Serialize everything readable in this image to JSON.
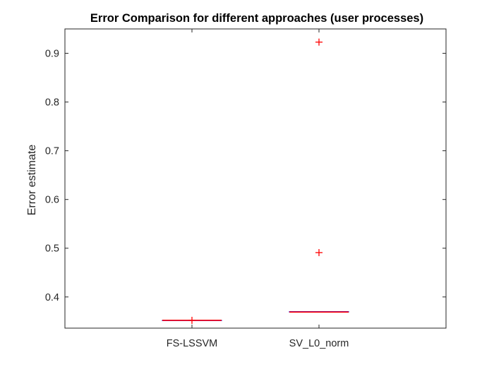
{
  "chart_data": {
    "type": "boxplot",
    "title": "Error Comparison for different approaches (user processes)",
    "xlabel": "",
    "ylabel": "Error estimate",
    "ylim": [
      0.336,
      0.95
    ],
    "yticks": [
      0.4,
      0.5,
      0.6,
      0.7,
      0.8,
      0.9
    ],
    "ytick_labels": [
      "0.4",
      "0.5",
      "0.6",
      "0.7",
      "0.8",
      "0.9"
    ],
    "categories": [
      "FS-LSSVM",
      "SV_L0_norm"
    ],
    "boxes": [
      {
        "category": "FS-LSSVM",
        "min": 0.352,
        "q1": 0.352,
        "median": 0.352,
        "q3": 0.352,
        "max": 0.352,
        "outliers": [
          0.352
        ]
      },
      {
        "category": "SV_L0_norm",
        "min": 0.369,
        "q1": 0.369,
        "median": 0.369,
        "q3": 0.37,
        "max": 0.37,
        "outliers": [
          0.491,
          0.923
        ]
      }
    ],
    "grid": false,
    "legend": false,
    "colors": {
      "box": "#0000ff",
      "median": "#ff0000",
      "outlier": "#ff0000",
      "axes": "#262626",
      "text": "#262626"
    }
  }
}
